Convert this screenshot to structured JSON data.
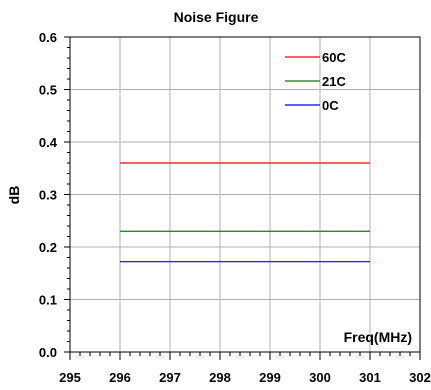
{
  "chart_data": {
    "type": "line",
    "title": "Noise Figure",
    "xlabel": "Freq(MHz)",
    "ylabel": "dB",
    "xlim": [
      295,
      302
    ],
    "ylim": [
      0.0,
      0.6
    ],
    "x_ticks": [
      295,
      296,
      297,
      298,
      299,
      300,
      301,
      302
    ],
    "x_tick_labels": [
      "295",
      "296",
      "297",
      "298",
      "299",
      "300",
      "301",
      "302"
    ],
    "y_ticks": [
      0.0,
      0.1,
      0.2,
      0.3,
      0.4,
      0.5,
      0.6
    ],
    "y_tick_labels": [
      "0.0",
      "0.1",
      "0.2",
      "0.3",
      "0.4",
      "0.5",
      "0.6"
    ],
    "grid": true,
    "legend_position": "top-right",
    "series": [
      {
        "name": "60C",
        "color": "#ff0000",
        "x": [
          296,
          301
        ],
        "y": [
          0.36,
          0.36
        ]
      },
      {
        "name": "21C",
        "color": "#008000",
        "x": [
          296,
          301
        ],
        "y": [
          0.23,
          0.23
        ]
      },
      {
        "name": "0C",
        "color": "#0000ff",
        "x": [
          296,
          301
        ],
        "y": [
          0.172,
          0.172
        ]
      }
    ]
  }
}
